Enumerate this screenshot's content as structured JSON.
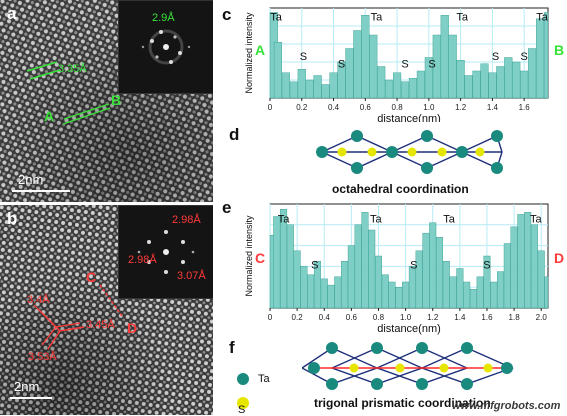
{
  "panels": {
    "a": {
      "letter": "a",
      "spacing_label": "3.35Å",
      "fft_label": "2.9Å",
      "point_a": "A",
      "point_b": "B",
      "scalebar": "2nm"
    },
    "b": {
      "letter": "b",
      "fft_labels": [
        "2.98Å",
        "2.98Å",
        "3.07Å"
      ],
      "point_c": "C",
      "point_d": "D",
      "spacing_labels": [
        "3.4Å",
        "3.45Å",
        "3.53Å"
      ],
      "scalebar": "2nm"
    },
    "c": {
      "letter": "c",
      "end_left": "A",
      "end_right": "B"
    },
    "d": {
      "letter": "d",
      "caption": "octahedral coordination"
    },
    "e": {
      "letter": "e",
      "end_left": "C",
      "end_right": "D"
    },
    "f": {
      "letter": "f",
      "caption": "trigonal prismatic coordination"
    }
  },
  "legend": {
    "ta": "Ta",
    "s": "S"
  },
  "watermark": "www.mfgrobots.com",
  "colors": {
    "bar_fill": "#7fcfc6",
    "bar_edge": "#2b9a8c",
    "grid": "#b7ecf5",
    "ta_atom": "#1a8a7e",
    "s_atom": "#e6e600",
    "green_label": "#38e238",
    "red_label": "#ff3a3a"
  },
  "chart_data": [
    {
      "type": "bar",
      "panel": "c",
      "title": "",
      "xlabel": "distance(nm)",
      "ylabel": "Normalized intensity",
      "xlim": [
        0,
        1.75
      ],
      "ylim": [
        0,
        1
      ],
      "xticks": [
        "0",
        "0.2",
        "0.4",
        "0.6",
        "0.8",
        "1.0",
        "1.2",
        "1.4",
        "1.6"
      ],
      "grid": true,
      "x": [
        0.0,
        0.05,
        0.1,
        0.15,
        0.2,
        0.25,
        0.3,
        0.35,
        0.4,
        0.45,
        0.5,
        0.55,
        0.6,
        0.65,
        0.7,
        0.75,
        0.8,
        0.85,
        0.9,
        0.95,
        1.0,
        1.05,
        1.1,
        1.15,
        1.2,
        1.25,
        1.3,
        1.35,
        1.4,
        1.45,
        1.5,
        1.55,
        1.6,
        1.65,
        1.7,
        1.75
      ],
      "values": [
        0.95,
        0.62,
        0.28,
        0.18,
        0.32,
        0.2,
        0.25,
        0.15,
        0.28,
        0.4,
        0.55,
        0.75,
        0.92,
        0.7,
        0.35,
        0.2,
        0.28,
        0.18,
        0.22,
        0.3,
        0.45,
        0.7,
        0.92,
        0.7,
        0.42,
        0.25,
        0.3,
        0.38,
        0.28,
        0.35,
        0.45,
        0.4,
        0.3,
        0.55,
        0.88,
        0.95
      ],
      "annotations": [
        {
          "text": "Ta",
          "x": 0.02,
          "y": 0.86
        },
        {
          "text": "S",
          "x": 0.21,
          "y": 0.42
        },
        {
          "text": "S",
          "x": 0.45,
          "y": 0.34
        },
        {
          "text": "Ta",
          "x": 0.67,
          "y": 0.86
        },
        {
          "text": "S",
          "x": 0.85,
          "y": 0.34
        },
        {
          "text": "S",
          "x": 1.02,
          "y": 0.34
        },
        {
          "text": "Ta",
          "x": 1.21,
          "y": 0.86
        },
        {
          "text": "S",
          "x": 1.42,
          "y": 0.42
        },
        {
          "text": "S",
          "x": 1.6,
          "y": 0.42
        },
        {
          "text": "Ta",
          "x": 1.8,
          "y": 0.86
        }
      ]
    },
    {
      "type": "bar",
      "panel": "e",
      "title": "",
      "xlabel": "distance(nm)",
      "ylabel": "Normalized intensity",
      "xlim": [
        0,
        2.05
      ],
      "ylim": [
        0,
        1
      ],
      "xticks": [
        "0",
        "0.2",
        "0.4",
        "0.6",
        "0.8",
        "1.0",
        "1.2",
        "1.4",
        "1.6",
        "1.8",
        "2.0"
      ],
      "grid": true,
      "x": [
        0.0,
        0.05,
        0.1,
        0.15,
        0.2,
        0.25,
        0.3,
        0.35,
        0.4,
        0.45,
        0.5,
        0.55,
        0.6,
        0.65,
        0.7,
        0.75,
        0.8,
        0.85,
        0.9,
        0.95,
        1.0,
        1.05,
        1.1,
        1.15,
        1.2,
        1.25,
        1.3,
        1.35,
        1.4,
        1.45,
        1.5,
        1.55,
        1.6,
        1.65,
        1.7,
        1.75,
        1.8,
        1.85,
        1.9,
        1.95,
        2.0,
        2.05
      ],
      "values": [
        0.7,
        0.88,
        0.95,
        0.8,
        0.55,
        0.4,
        0.32,
        0.45,
        0.28,
        0.22,
        0.3,
        0.45,
        0.6,
        0.8,
        0.92,
        0.75,
        0.5,
        0.32,
        0.25,
        0.2,
        0.25,
        0.4,
        0.55,
        0.72,
        0.82,
        0.68,
        0.45,
        0.3,
        0.38,
        0.25,
        0.18,
        0.3,
        0.5,
        0.25,
        0.35,
        0.62,
        0.78,
        0.9,
        0.92,
        0.8,
        0.55,
        0.3
      ],
      "annotations": [
        {
          "text": "Ta",
          "x": 0.1,
          "y": 0.82
        },
        {
          "text": "S",
          "x": 0.33,
          "y": 0.38
        },
        {
          "text": "Ta",
          "x": 0.78,
          "y": 0.82
        },
        {
          "text": "S",
          "x": 1.06,
          "y": 0.38
        },
        {
          "text": "Ta",
          "x": 1.32,
          "y": 0.82
        },
        {
          "text": "S",
          "x": 1.6,
          "y": 0.38
        },
        {
          "text": "Ta",
          "x": 1.96,
          "y": 0.82
        }
      ]
    }
  ]
}
